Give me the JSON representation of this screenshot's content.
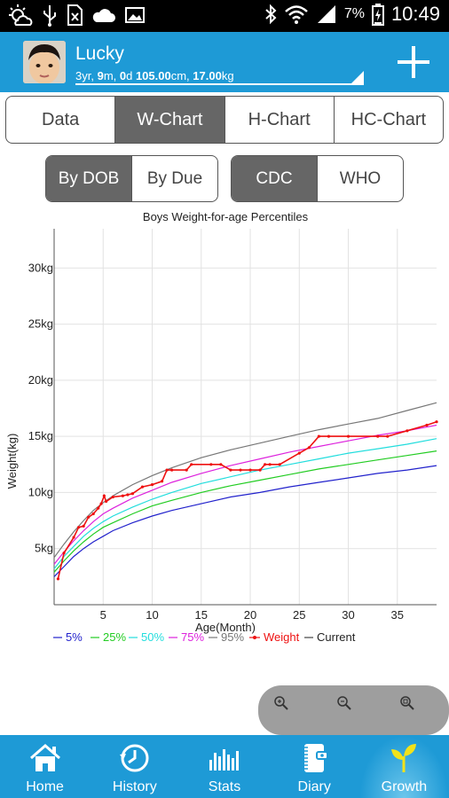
{
  "status_bar": {
    "time": "10:49",
    "battery": "7%",
    "left_icons": [
      "weather-icon",
      "usb-icon",
      "no-sim-icon",
      "cloud-icon",
      "image-icon"
    ],
    "right_icons": [
      "bluetooth-icon",
      "wifi-icon",
      "signal-icon",
      "battery-icon"
    ]
  },
  "header": {
    "name": "Lucky",
    "info": {
      "years": "3",
      "years_unit": "yr, ",
      "months": "9",
      "months_unit": "m, ",
      "days": "0",
      "days_unit": "d ",
      "height": "105.00",
      "height_unit": "cm, ",
      "weight": "17.00",
      "weight_unit": "kg"
    }
  },
  "tabs": [
    {
      "label": "Data",
      "active": false
    },
    {
      "label": "W-Chart",
      "active": true
    },
    {
      "label": "H-Chart",
      "active": false
    },
    {
      "label": "HC-Chart",
      "active": false
    }
  ],
  "date_basis": {
    "options": [
      "By DOB",
      "By Due"
    ],
    "selected": "By DOB"
  },
  "standard": {
    "options": [
      "CDC",
      "WHO"
    ],
    "selected": "CDC"
  },
  "chart_data": {
    "type": "line",
    "title": "Boys Weight-for-age Percentiles",
    "xlabel": "Age(Month)",
    "ylabel": "Weight(kg)",
    "xlim": [
      0,
      39
    ],
    "ylim": [
      0,
      33.5
    ],
    "x_ticks": [
      5,
      10,
      15,
      20,
      25,
      30,
      35
    ],
    "y_ticks": [
      5,
      10,
      15,
      20,
      25,
      30
    ],
    "y_tick_labels": [
      "5kg",
      "10kg",
      "15kg",
      "20kg",
      "25kg",
      "30kg"
    ],
    "grid": true,
    "legend_position": "bottom",
    "series": [
      {
        "name": "5%",
        "color": "#2222cc",
        "points": [
          [
            0,
            2.5
          ],
          [
            1,
            3.4
          ],
          [
            2,
            4.3
          ],
          [
            3,
            5.0
          ],
          [
            4,
            5.6
          ],
          [
            5,
            6.1
          ],
          [
            6,
            6.6
          ],
          [
            8,
            7.3
          ],
          [
            10,
            7.9
          ],
          [
            12,
            8.4
          ],
          [
            15,
            9.0
          ],
          [
            18,
            9.6
          ],
          [
            21,
            10.0
          ],
          [
            24,
            10.5
          ],
          [
            27,
            10.9
          ],
          [
            30,
            11.3
          ],
          [
            33,
            11.7
          ],
          [
            36,
            12.0
          ],
          [
            39,
            12.4
          ]
        ]
      },
      {
        "name": "25%",
        "color": "#22cc22",
        "points": [
          [
            0,
            2.9
          ],
          [
            1,
            3.9
          ],
          [
            2,
            4.8
          ],
          [
            3,
            5.6
          ],
          [
            4,
            6.3
          ],
          [
            5,
            6.9
          ],
          [
            6,
            7.3
          ],
          [
            8,
            8.1
          ],
          [
            10,
            8.8
          ],
          [
            12,
            9.3
          ],
          [
            15,
            10.0
          ],
          [
            18,
            10.6
          ],
          [
            21,
            11.1
          ],
          [
            24,
            11.6
          ],
          [
            27,
            12.1
          ],
          [
            30,
            12.5
          ],
          [
            33,
            12.9
          ],
          [
            36,
            13.3
          ],
          [
            39,
            13.7
          ]
        ]
      },
      {
        "name": "50%",
        "color": "#22dddd",
        "points": [
          [
            0,
            3.2
          ],
          [
            1,
            4.3
          ],
          [
            2,
            5.2
          ],
          [
            3,
            6.1
          ],
          [
            4,
            6.8
          ],
          [
            5,
            7.4
          ],
          [
            6,
            7.9
          ],
          [
            8,
            8.7
          ],
          [
            10,
            9.4
          ],
          [
            12,
            10.0
          ],
          [
            15,
            10.8
          ],
          [
            18,
            11.4
          ],
          [
            21,
            12.0
          ],
          [
            24,
            12.5
          ],
          [
            27,
            13.0
          ],
          [
            30,
            13.5
          ],
          [
            33,
            13.9
          ],
          [
            36,
            14.3
          ],
          [
            39,
            14.8
          ]
        ]
      },
      {
        "name": "75%",
        "color": "#dd22dd",
        "points": [
          [
            0,
            3.6
          ],
          [
            1,
            4.7
          ],
          [
            2,
            5.7
          ],
          [
            3,
            6.6
          ],
          [
            4,
            7.4
          ],
          [
            5,
            8.1
          ],
          [
            6,
            8.6
          ],
          [
            8,
            9.5
          ],
          [
            10,
            10.2
          ],
          [
            12,
            10.9
          ],
          [
            15,
            11.7
          ],
          [
            18,
            12.4
          ],
          [
            21,
            13.0
          ],
          [
            24,
            13.6
          ],
          [
            27,
            14.1
          ],
          [
            30,
            14.6
          ],
          [
            33,
            15.1
          ],
          [
            36,
            15.5
          ],
          [
            39,
            16.0
          ]
        ]
      },
      {
        "name": "95%",
        "color": "#777777",
        "points": [
          [
            0,
            4.2
          ],
          [
            1,
            5.4
          ],
          [
            2,
            6.5
          ],
          [
            3,
            7.5
          ],
          [
            4,
            8.4
          ],
          [
            5,
            9.1
          ],
          [
            6,
            9.7
          ],
          [
            8,
            10.7
          ],
          [
            10,
            11.5
          ],
          [
            12,
            12.2
          ],
          [
            15,
            13.1
          ],
          [
            18,
            13.8
          ],
          [
            21,
            14.4
          ],
          [
            24,
            15.0
          ],
          [
            27,
            15.6
          ],
          [
            30,
            16.1
          ],
          [
            33,
            16.6
          ],
          [
            36,
            17.3
          ],
          [
            39,
            18.0
          ]
        ]
      },
      {
        "name": "Weight",
        "color": "#ee1111",
        "points": [
          [
            0.4,
            2.3
          ],
          [
            1,
            4.6
          ],
          [
            2,
            6.0
          ],
          [
            2.5,
            6.9
          ],
          [
            3,
            7.0
          ],
          [
            3.5,
            7.8
          ],
          [
            4,
            8.1
          ],
          [
            4.5,
            8.6
          ],
          [
            4.8,
            9.0
          ],
          [
            5.1,
            9.7
          ],
          [
            5.3,
            9.2
          ],
          [
            6,
            9.6
          ],
          [
            7,
            9.7
          ],
          [
            7.5,
            9.8
          ],
          [
            8,
            9.9
          ],
          [
            9,
            10.5
          ],
          [
            10,
            10.7
          ],
          [
            11,
            11.0
          ],
          [
            11.5,
            12.0
          ],
          [
            12,
            12.0
          ],
          [
            13.5,
            12.0
          ],
          [
            14,
            12.5
          ],
          [
            16,
            12.5
          ],
          [
            17,
            12.5
          ],
          [
            18,
            12.0
          ],
          [
            19,
            12.0
          ],
          [
            20,
            12.0
          ],
          [
            21,
            12.0
          ],
          [
            21.5,
            12.5
          ],
          [
            22,
            12.5
          ],
          [
            23,
            12.5
          ],
          [
            25,
            13.5
          ],
          [
            26,
            14.0
          ],
          [
            27,
            15.0
          ],
          [
            28,
            15.0
          ],
          [
            30,
            15.0
          ],
          [
            33,
            15.0
          ],
          [
            34,
            15.0
          ],
          [
            36,
            15.5
          ],
          [
            38,
            16.0
          ],
          [
            39,
            16.3
          ]
        ]
      },
      {
        "name": "Current",
        "color": "#444444",
        "points": []
      }
    ]
  },
  "zoom": {
    "icons": [
      "zoom-in-icon",
      "zoom-out-icon",
      "zoom-reset-icon"
    ]
  },
  "nav": [
    {
      "label": "Home",
      "icon": "home-icon",
      "active": false
    },
    {
      "label": "History",
      "icon": "history-icon",
      "active": false
    },
    {
      "label": "Stats",
      "icon": "stats-icon",
      "active": false
    },
    {
      "label": "Diary",
      "icon": "diary-icon",
      "active": false
    },
    {
      "label": "Growth",
      "icon": "growth-icon",
      "active": true
    }
  ]
}
